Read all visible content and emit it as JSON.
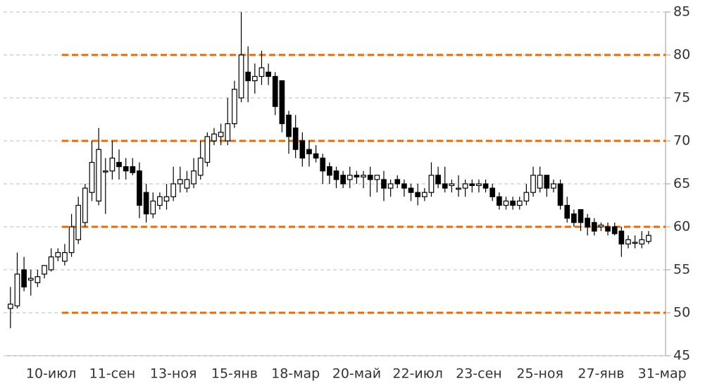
{
  "chart_data": {
    "type": "candlestick",
    "categories": [
      null,
      null,
      null,
      null,
      null,
      null,
      "10-июл",
      null,
      null,
      null,
      null,
      null,
      null,
      null,
      null,
      "11-сен",
      null,
      null,
      null,
      null,
      null,
      null,
      null,
      null,
      "13-ноя",
      null,
      null,
      null,
      null,
      null,
      null,
      null,
      null,
      "15-янв",
      null,
      null,
      null,
      null,
      null,
      null,
      null,
      null,
      "18-мар",
      null,
      null,
      null,
      null,
      null,
      null,
      null,
      null,
      "20-май",
      null,
      null,
      null,
      null,
      null,
      null,
      null,
      null,
      "22-июл",
      null,
      null,
      null,
      null,
      null,
      null,
      null,
      null,
      "23-сен",
      null,
      null,
      null,
      null,
      null,
      null,
      null,
      null,
      "25-ноя",
      null,
      null,
      null,
      null,
      null,
      null,
      null,
      null,
      "27-янв",
      null,
      null,
      null,
      null,
      null,
      null,
      null,
      null,
      "31-мар"
    ],
    "open": [
      50.5,
      50.8,
      55,
      53.8,
      53.5,
      54.5,
      55,
      56.5,
      56,
      57,
      58.5,
      60.5,
      64,
      63,
      66.5,
      66.5,
      67.5,
      67,
      67,
      66.5,
      64,
      61.5,
      62.5,
      63,
      63.5,
      65,
      64.5,
      65,
      66,
      67.5,
      70,
      70.5,
      70,
      72,
      75,
      78,
      77,
      77.5,
      78,
      77.5,
      77,
      73,
      71.5,
      70,
      69,
      68.5,
      68,
      67,
      66.5,
      66,
      65.5,
      66,
      65.8,
      66,
      65.5,
      65.5,
      64.5,
      65.5,
      65,
      64.5,
      64,
      63.5,
      64,
      66,
      65,
      64.8,
      64.5,
      64.5,
      65,
      64.8,
      65,
      64.5,
      63.5,
      62.5,
      63,
      62.5,
      63,
      64,
      64.5,
      66,
      64.5,
      65,
      62.5,
      61.5,
      62,
      61,
      60.5,
      60,
      60,
      60,
      59.5,
      58,
      58.2,
      58,
      58.3,
      null,
      null
    ],
    "high": [
      53,
      57,
      56.5,
      55,
      55,
      55.5,
      57.5,
      57.5,
      58,
      61.5,
      63.5,
      65,
      70,
      71.5,
      68,
      70,
      69,
      68,
      68,
      67.5,
      65,
      64,
      64,
      65,
      67,
      67,
      66.5,
      68,
      70,
      71,
      71.5,
      72,
      75,
      77,
      85,
      81,
      79,
      80.5,
      79,
      78,
      77,
      73.5,
      73,
      71,
      70,
      69.5,
      68.5,
      67.5,
      67,
      66.5,
      67,
      66.5,
      66.5,
      67,
      66,
      66.5,
      65.5,
      66,
      65.5,
      65,
      65,
      64.5,
      67.5,
      67,
      67,
      65.5,
      66,
      65.5,
      65.5,
      65.5,
      65.5,
      65,
      64,
      63.5,
      63.5,
      63.5,
      65,
      67,
      67,
      66,
      65.5,
      65.5,
      63.5,
      62,
      62,
      61.5,
      61,
      60.5,
      60.5,
      60.5,
      60,
      59,
      59,
      59.5,
      59.5,
      null,
      null
    ],
    "low": [
      48.2,
      50.5,
      52.5,
      52,
      53,
      54,
      54.8,
      56,
      55.5,
      56.5,
      58,
      60,
      63,
      62.5,
      61.5,
      65.5,
      65.5,
      65.5,
      66,
      61,
      60.5,
      61,
      62,
      62,
      63,
      64,
      64,
      64.5,
      65.5,
      67,
      69.5,
      69.5,
      69.5,
      71.5,
      74.5,
      74.5,
      75.5,
      76.5,
      76.5,
      73,
      71,
      68.5,
      68,
      67,
      67,
      67.5,
      65,
      65,
      64.5,
      64.5,
      64.5,
      65,
      64.5,
      63.5,
      64,
      63,
      63.5,
      64.5,
      63.5,
      63,
      62.5,
      63,
      63.5,
      64.5,
      64,
      64,
      63.5,
      63.5,
      64,
      64,
      64,
      63,
      62,
      62,
      62,
      62,
      62.5,
      63.5,
      64,
      63.5,
      64,
      62,
      60.5,
      60,
      59.5,
      59,
      59,
      59.5,
      59,
      59,
      56.5,
      57.5,
      57.5,
      57.5,
      58,
      null,
      null
    ],
    "close": [
      51,
      54.5,
      53,
      54,
      54.2,
      55.5,
      56.5,
      57,
      57,
      60,
      62.5,
      64.5,
      67.5,
      69,
      66.5,
      68,
      67,
      66.5,
      66.3,
      62.5,
      61.5,
      63,
      63.5,
      63.5,
      65,
      65.5,
      65.5,
      66.5,
      68,
      70.5,
      70.8,
      71,
      72,
      76,
      80,
      77,
      77.5,
      78.5,
      77.5,
      74,
      72,
      70.5,
      69,
      68,
      68.5,
      68,
      66.5,
      66,
      65.5,
      65,
      66,
      65.8,
      66,
      65.5,
      66,
      64.5,
      65,
      65,
      64.5,
      64,
      63.5,
      64,
      66,
      65,
      64.5,
      65,
      64.5,
      65,
      64.8,
      65,
      64.5,
      63.5,
      62.5,
      63,
      62.5,
      63,
      64,
      66,
      66,
      64.5,
      65,
      62.5,
      61,
      60.5,
      60.5,
      60,
      59.5,
      60.2,
      59.5,
      59.2,
      58,
      58.5,
      58.2,
      58.5,
      59,
      null,
      null
    ],
    "up_color": "#ffffff",
    "down_color": "#000000",
    "edge_color": "#000000",
    "ylim": [
      45,
      85
    ],
    "yticks": [
      45,
      50,
      55,
      60,
      65,
      70,
      75,
      80,
      85
    ],
    "grid": true,
    "reference_lines": [
      80,
      70,
      60,
      50
    ],
    "reference_color": "#e46c0a"
  }
}
